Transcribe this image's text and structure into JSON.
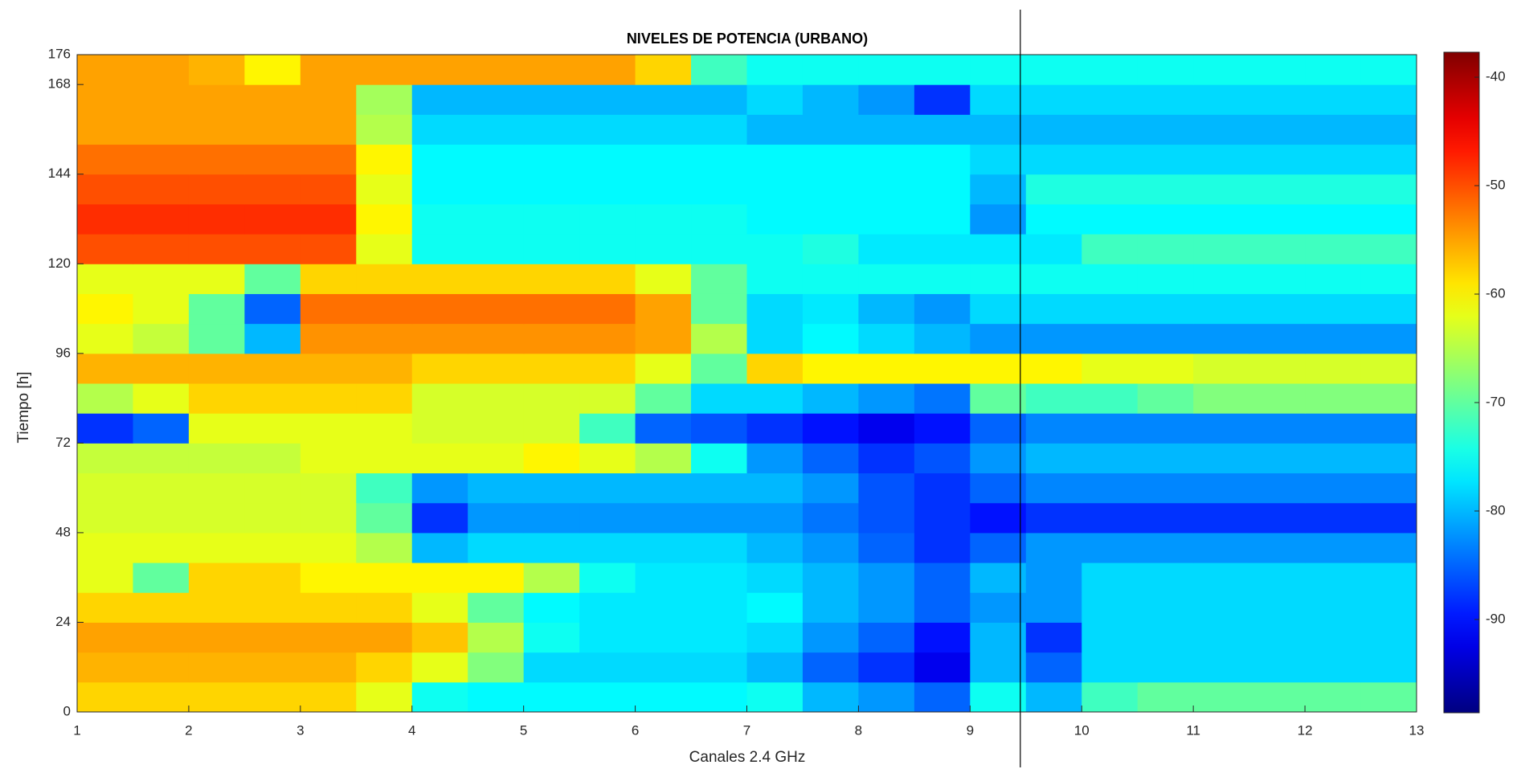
{
  "chart_data": {
    "type": "heatmap",
    "title": "NIVELES DE POTENCIA (URBANO)",
    "x_label": "Canales  2.4 GHz",
    "y_label": "Tiempo [h]",
    "colormap": "jet",
    "xbins": [
      1,
      1.5,
      2,
      2.5,
      3,
      3.5,
      4,
      4.5,
      5,
      5.5,
      6,
      6.5,
      7,
      7.5,
      8,
      8.5,
      9,
      9.5,
      10,
      10.5,
      11,
      11.5,
      12,
      12.5,
      13
    ],
    "ybins": [
      0,
      8,
      16,
      24,
      32,
      40,
      48,
      56,
      64,
      72,
      80,
      88,
      96,
      104,
      112,
      120,
      128,
      136,
      144,
      152,
      160,
      168,
      176
    ],
    "values": [
      [
        -58,
        -58,
        -58,
        -58,
        -58,
        -62,
        -75,
        -76,
        -76,
        -76,
        -76,
        -76,
        -75,
        -80,
        -82,
        -85,
        -75,
        -80,
        -72,
        -70,
        -70,
        -70,
        -70,
        -70
      ],
      [
        -56,
        -56,
        -56,
        -56,
        -56,
        -58,
        -62,
        -68,
        -78,
        -78,
        -78,
        -78,
        -80,
        -85,
        -88,
        -92,
        -80,
        -85,
        -78,
        -78,
        -78,
        -78,
        -78,
        -78
      ],
      [
        -55,
        -55,
        -55,
        -55,
        -55,
        -55,
        -57,
        -65,
        -75,
        -77,
        -77,
        -77,
        -78,
        -82,
        -85,
        -90,
        -80,
        -88,
        -78,
        -78,
        -78,
        -78,
        -78,
        -78
      ],
      [
        -58,
        -58,
        -58,
        -58,
        -58,
        -58,
        -62,
        -70,
        -76,
        -77,
        -77,
        -77,
        -76,
        -80,
        -82,
        -85,
        -82,
        -82,
        -78,
        -78,
        -78,
        -78,
        -78,
        -78
      ],
      [
        -62,
        -70,
        -58,
        -58,
        -60,
        -60,
        -60,
        -60,
        -65,
        -75,
        -77,
        -77,
        -78,
        -80,
        -82,
        -85,
        -80,
        -82,
        -78,
        -78,
        -78,
        -78,
        -78,
        -78
      ],
      [
        -62,
        -62,
        -62,
        -62,
        -62,
        -65,
        -80,
        -78,
        -78,
        -78,
        -78,
        -78,
        -80,
        -82,
        -85,
        -88,
        -85,
        -82,
        -82,
        -82,
        -82,
        -82,
        -82,
        -82
      ],
      [
        -63,
        -63,
        -63,
        -63,
        -63,
        -70,
        -88,
        -82,
        -82,
        -82,
        -82,
        -82,
        -82,
        -84,
        -86,
        -88,
        -90,
        -88,
        -88,
        -88,
        -88,
        -88,
        -88,
        -88
      ],
      [
        -63,
        -63,
        -63,
        -63,
        -63,
        -72,
        -82,
        -80,
        -80,
        -80,
        -80,
        -80,
        -80,
        -82,
        -86,
        -88,
        -85,
        -83,
        -83,
        -83,
        -83,
        -83,
        -83,
        -83
      ],
      [
        -64,
        -64,
        -64,
        -64,
        -62,
        -62,
        -62,
        -62,
        -60,
        -62,
        -65,
        -75,
        -82,
        -85,
        -88,
        -86,
        -82,
        -80,
        -80,
        -80,
        -80,
        -80,
        -80,
        -80
      ],
      [
        -88,
        -85,
        -62,
        -62,
        -62,
        -62,
        -63,
        -63,
        -63,
        -72,
        -85,
        -86,
        -88,
        -90,
        -92,
        -90,
        -85,
        -83,
        -83,
        -83,
        -83,
        -83,
        -83,
        -83
      ],
      [
        -65,
        -62,
        -58,
        -58,
        -58,
        -58,
        -63,
        -63,
        -63,
        -63,
        -70,
        -78,
        -78,
        -80,
        -82,
        -84,
        -70,
        -72,
        -72,
        -70,
        -68,
        -68,
        -68,
        -68
      ],
      [
        -56,
        -56,
        -56,
        -56,
        -56,
        -56,
        -58,
        -58,
        -58,
        -58,
        -62,
        -70,
        -58,
        -60,
        -60,
        -60,
        -60,
        -60,
        -62,
        -62,
        -63,
        -63,
        -63,
        -63
      ],
      [
        -62,
        -64,
        -70,
        -80,
        -54,
        -54,
        -54,
        -54,
        -54,
        -54,
        -55,
        -65,
        -78,
        -76,
        -78,
        -80,
        -82,
        -82,
        -82,
        -82,
        -82,
        -82,
        -82,
        -82
      ],
      [
        -60,
        -62,
        -70,
        -85,
        -52,
        -52,
        -52,
        -52,
        -52,
        -52,
        -55,
        -70,
        -78,
        -77,
        -80,
        -82,
        -78,
        -78,
        -78,
        -78,
        -78,
        -78,
        -78,
        -78
      ],
      [
        -62,
        -62,
        -62,
        -70,
        -58,
        -58,
        -58,
        -58,
        -58,
        -58,
        -62,
        -70,
        -75,
        -75,
        -75,
        -75,
        -75,
        -75,
        -75,
        -75,
        -75,
        -75,
        -75,
        -75
      ],
      [
        -50,
        -50,
        -50,
        -50,
        -50,
        -62,
        -75,
        -75,
        -75,
        -75,
        -75,
        -75,
        -75,
        -74,
        -77,
        -77,
        -77,
        -77,
        -72,
        -72,
        -72,
        -72,
        -72,
        -72
      ],
      [
        -48,
        -48,
        -48,
        -48,
        -48,
        -60,
        -75,
        -75,
        -75,
        -75,
        -75,
        -75,
        -76,
        -76,
        -76,
        -76,
        -82,
        -76,
        -76,
        -76,
        -76,
        -76,
        -76,
        -76
      ],
      [
        -50,
        -50,
        -50,
        -50,
        -50,
        -62,
        -76,
        -76,
        -76,
        -76,
        -76,
        -76,
        -76,
        -76,
        -76,
        -76,
        -80,
        -74,
        -74,
        -74,
        -74,
        -74,
        -74,
        -74
      ],
      [
        -52,
        -52,
        -52,
        -52,
        -52,
        -60,
        -76,
        -76,
        -76,
        -76,
        -76,
        -76,
        -76,
        -76,
        -76,
        -76,
        -78,
        -78,
        -78,
        -78,
        -78,
        -78,
        -78,
        -78
      ],
      [
        -55,
        -55,
        -55,
        -55,
        -55,
        -65,
        -78,
        -78,
        -78,
        -78,
        -78,
        -78,
        -80,
        -80,
        -80,
        -80,
        -80,
        -80,
        -80,
        -80,
        -80,
        -80,
        -80,
        -80
      ],
      [
        -55,
        -55,
        -55,
        -55,
        -55,
        -66,
        -80,
        -80,
        -80,
        -80,
        -80,
        -80,
        -78,
        -80,
        -82,
        -88,
        -78,
        -78,
        -78,
        -78,
        -78,
        -78,
        -78,
        -78
      ],
      [
        -55,
        -55,
        -56,
        -60,
        -55,
        -55,
        -55,
        -55,
        -55,
        -55,
        -58,
        -72,
        -75,
        -75,
        -75,
        -75,
        -75,
        -75,
        -75,
        -75,
        -75,
        -75,
        -75,
        -75
      ]
    ],
    "xlim": [
      1,
      13
    ],
    "xticks": [
      1,
      2,
      3,
      4,
      5,
      6,
      7,
      8,
      9,
      10,
      11,
      12,
      13
    ],
    "ylim": [
      0,
      176
    ],
    "yticks": [
      0,
      24,
      48,
      72,
      96,
      120,
      144,
      168,
      176
    ],
    "clim": [
      -98.6,
      -37.7
    ],
    "cticks": [
      -90,
      -80,
      -70,
      -60,
      -50,
      -40
    ],
    "vline": 9.45
  }
}
